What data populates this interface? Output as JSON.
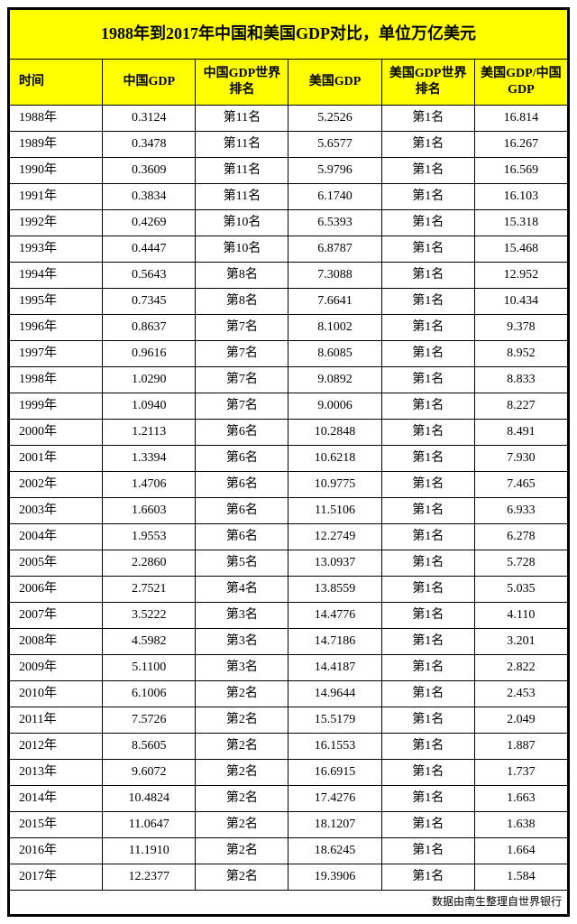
{
  "table": {
    "title": "1988年到2017年中国和美国GDP对比，单位万亿美元",
    "title_bg": "#ffff00",
    "header_bg": "#ffff00",
    "border_color": "#000000",
    "font_family": "SimSun",
    "columns": [
      "时间",
      "中国GDP",
      "中国GDP世界排名",
      "美国GDP",
      "美国GDP世界排名",
      "美国GDP/中国GDP"
    ],
    "rows": [
      [
        "1988年",
        "0.3124",
        "第11名",
        "5.2526",
        "第1名",
        "16.814"
      ],
      [
        "1989年",
        "0.3478",
        "第11名",
        "5.6577",
        "第1名",
        "16.267"
      ],
      [
        "1990年",
        "0.3609",
        "第11名",
        "5.9796",
        "第1名",
        "16.569"
      ],
      [
        "1991年",
        "0.3834",
        "第11名",
        "6.1740",
        "第1名",
        "16.103"
      ],
      [
        "1992年",
        "0.4269",
        "第10名",
        "6.5393",
        "第1名",
        "15.318"
      ],
      [
        "1993年",
        "0.4447",
        "第10名",
        "6.8787",
        "第1名",
        "15.468"
      ],
      [
        "1994年",
        "0.5643",
        "第8名",
        "7.3088",
        "第1名",
        "12.952"
      ],
      [
        "1995年",
        "0.7345",
        "第8名",
        "7.6641",
        "第1名",
        "10.434"
      ],
      [
        "1996年",
        "0.8637",
        "第7名",
        "8.1002",
        "第1名",
        "9.378"
      ],
      [
        "1997年",
        "0.9616",
        "第7名",
        "8.6085",
        "第1名",
        "8.952"
      ],
      [
        "1998年",
        "1.0290",
        "第7名",
        "9.0892",
        "第1名",
        "8.833"
      ],
      [
        "1999年",
        "1.0940",
        "第7名",
        "9.0006",
        "第1名",
        "8.227"
      ],
      [
        "2000年",
        "1.2113",
        "第6名",
        "10.2848",
        "第1名",
        "8.491"
      ],
      [
        "2001年",
        "1.3394",
        "第6名",
        "10.6218",
        "第1名",
        "7.930"
      ],
      [
        "2002年",
        "1.4706",
        "第6名",
        "10.9775",
        "第1名",
        "7.465"
      ],
      [
        "2003年",
        "1.6603",
        "第6名",
        "11.5106",
        "第1名",
        "6.933"
      ],
      [
        "2004年",
        "1.9553",
        "第6名",
        "12.2749",
        "第1名",
        "6.278"
      ],
      [
        "2005年",
        "2.2860",
        "第5名",
        "13.0937",
        "第1名",
        "5.728"
      ],
      [
        "2006年",
        "2.7521",
        "第4名",
        "13.8559",
        "第1名",
        "5.035"
      ],
      [
        "2007年",
        "3.5222",
        "第3名",
        "14.4776",
        "第1名",
        "4.110"
      ],
      [
        "2008年",
        "4.5982",
        "第3名",
        "14.7186",
        "第1名",
        "3.201"
      ],
      [
        "2009年",
        "5.1100",
        "第3名",
        "14.4187",
        "第1名",
        "2.822"
      ],
      [
        "2010年",
        "6.1006",
        "第2名",
        "14.9644",
        "第1名",
        "2.453"
      ],
      [
        "2011年",
        "7.5726",
        "第2名",
        "15.5179",
        "第1名",
        "2.049"
      ],
      [
        "2012年",
        "8.5605",
        "第2名",
        "16.1553",
        "第1名",
        "1.887"
      ],
      [
        "2013年",
        "9.6072",
        "第2名",
        "16.6915",
        "第1名",
        "1.737"
      ],
      [
        "2014年",
        "10.4824",
        "第2名",
        "17.4276",
        "第1名",
        "1.663"
      ],
      [
        "2015年",
        "11.0647",
        "第2名",
        "18.1207",
        "第1名",
        "1.638"
      ],
      [
        "2016年",
        "11.1910",
        "第2名",
        "18.6245",
        "第1名",
        "1.664"
      ],
      [
        "2017年",
        "12.2377",
        "第2名",
        "19.3906",
        "第1名",
        "1.584"
      ]
    ],
    "footer": "数据由南生整理自世界银行"
  }
}
